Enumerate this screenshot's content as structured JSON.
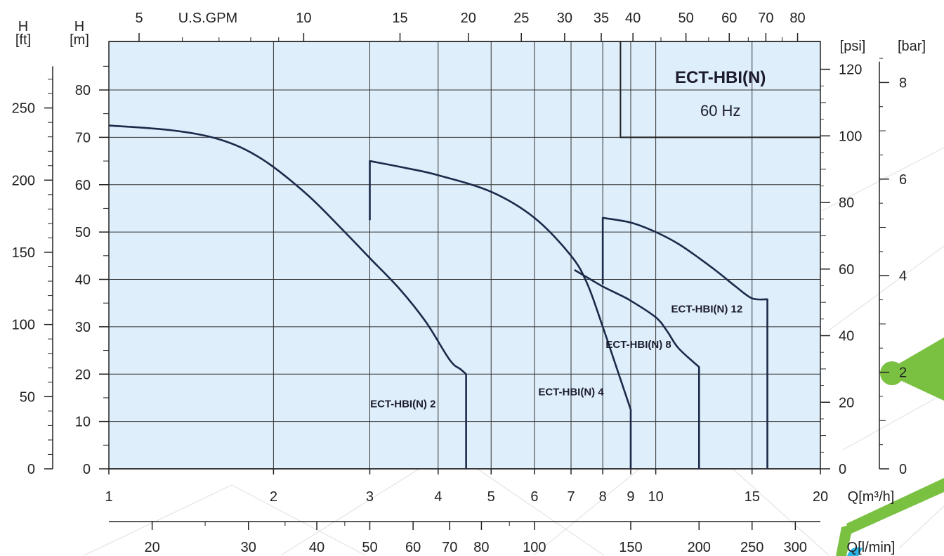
{
  "chart_data": {
    "type": "line",
    "title": "ECT-HBI(N)",
    "subtitle": "60 Hz",
    "x_scale": "log",
    "xlim": [
      1,
      20
    ],
    "ylim": [
      0,
      85
    ],
    "grid": true,
    "x_label": "Q[m³/h]",
    "x_label_bottom": "Q[l/min]",
    "x_label_top": "U.S.GPM",
    "y_label_m_top": "H",
    "y_label_m_bottom": "[m]",
    "y_label_ft_top": "H",
    "y_label_ft_bottom": "[ft]",
    "y_label_psi": "[psi]",
    "y_label_bar": "[bar]",
    "x_ticks": [
      1,
      2,
      3,
      4,
      5,
      6,
      7,
      8,
      9,
      10,
      15,
      20
    ],
    "y_ticks_m": [
      0,
      10,
      20,
      30,
      40,
      50,
      60,
      70,
      80
    ],
    "y_ticks_ft": [
      0,
      50,
      100,
      150,
      200,
      250
    ],
    "y_ticks_psi": [
      0,
      20,
      40,
      60,
      80,
      100,
      120
    ],
    "y_ticks_bar": [
      0,
      2,
      4,
      6,
      8
    ],
    "gpm_ticks": [
      5,
      10,
      15,
      20,
      25,
      30,
      35,
      40,
      50,
      60,
      70,
      80
    ],
    "lmin_ticks": [
      20,
      30,
      40,
      50,
      60,
      70,
      80,
      100,
      150,
      200,
      250,
      300
    ],
    "series": [
      {
        "name": "ECT-HBI(N) 2",
        "points": [
          [
            1,
            72.5
          ],
          [
            1.3,
            71.5
          ],
          [
            1.6,
            69.5
          ],
          [
            1.9,
            65.5
          ],
          [
            2.3,
            58
          ],
          [
            2.7,
            50
          ],
          [
            3.0,
            44.5
          ],
          [
            3.4,
            38
          ],
          [
            3.8,
            31
          ],
          [
            4.2,
            23
          ],
          [
            4.4,
            21
          ],
          [
            4.5,
            20
          ]
        ],
        "drop_to_zero": true
      },
      {
        "name": "ECT-HBI(N) 4",
        "points": [
          [
            3.0,
            65
          ],
          [
            3.5,
            63.5
          ],
          [
            4.0,
            62
          ],
          [
            5.0,
            58.5
          ],
          [
            6.0,
            53
          ],
          [
            7.0,
            45
          ],
          [
            7.5,
            39
          ],
          [
            8.0,
            30
          ],
          [
            8.5,
            21
          ],
          [
            9.0,
            12.5
          ]
        ],
        "drop_to_zero": true,
        "vertical_start_from": 52.5
      },
      {
        "name": "ECT-HBI(N) 8",
        "points": [
          [
            7.1,
            42
          ],
          [
            7.6,
            40
          ],
          [
            8.0,
            38.5
          ],
          [
            8.5,
            37
          ],
          [
            9.0,
            35.5
          ],
          [
            10.0,
            32
          ],
          [
            10.5,
            29
          ],
          [
            11.0,
            25.5
          ],
          [
            12.0,
            21.5
          ]
        ],
        "drop_to_zero": true
      },
      {
        "name": "ECT-HBI(N) 12",
        "points": [
          [
            8.0,
            53
          ],
          [
            9.0,
            52
          ],
          [
            10.0,
            50
          ],
          [
            11.0,
            47.5
          ],
          [
            12.0,
            44.5
          ],
          [
            13.0,
            41.5
          ],
          [
            14.0,
            38.5
          ],
          [
            15.0,
            36
          ],
          [
            16.0,
            35.8
          ]
        ],
        "drop_to_zero": true,
        "vertical_start_from": 39
      }
    ],
    "labels": [
      {
        "text": "ECT-HBI(N) 2",
        "at": [
          3.45,
          13
        ]
      },
      {
        "text": "ECT-HBI(N) 4",
        "at": [
          7.0,
          15.5
        ]
      },
      {
        "text": "ECT-HBI(N) 8",
        "at": [
          9.3,
          25.5
        ]
      },
      {
        "text": "ECT-HBI(N) 12",
        "at": [
          12.4,
          33
        ]
      }
    ]
  },
  "colors": {
    "plot_bg": "#deeefa",
    "curve": "#1c2a4a",
    "grid": "#333333",
    "accent_green": "#7ac142",
    "accent_cyan": "#2cb5e8"
  }
}
